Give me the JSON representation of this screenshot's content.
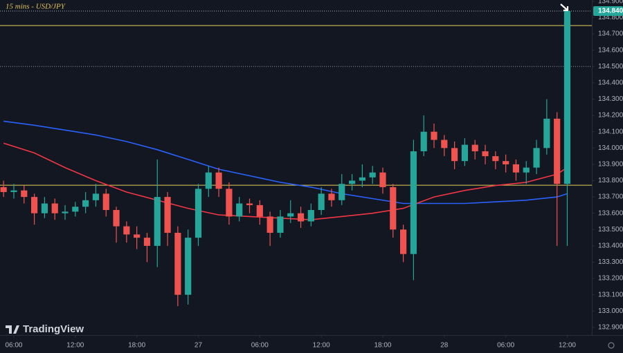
{
  "chart_data": {
    "type": "candlestick",
    "title": "15 mins - USD/JPY",
    "watermark": "TradingView",
    "x": [
      5,
      6,
      7,
      8,
      9,
      10,
      11,
      12,
      13,
      14,
      15,
      16,
      17,
      18,
      19,
      20,
      21,
      22,
      23,
      24,
      25,
      26,
      27,
      28,
      29,
      30,
      31,
      32,
      33,
      34,
      35,
      36,
      37,
      38,
      39,
      40,
      41,
      42,
      43,
      44,
      45,
      46,
      47,
      48,
      49,
      50,
      51,
      52,
      53,
      54,
      55,
      56,
      57,
      58,
      59,
      60
    ],
    "open": [
      133.76,
      133.73,
      133.74,
      133.7,
      133.6,
      133.66,
      133.6,
      133.61,
      133.64,
      133.68,
      133.72,
      133.62,
      133.52,
      133.47,
      133.45,
      133.4,
      133.7,
      133.48,
      133.1,
      133.45,
      133.75,
      133.85,
      133.75,
      133.58,
      133.66,
      133.65,
      133.58,
      133.48,
      133.58,
      133.6,
      133.55,
      133.62,
      133.72,
      133.68,
      133.78,
      133.8,
      133.82,
      133.85,
      133.76,
      133.5,
      133.35,
      133.98,
      134.1,
      134.05,
      134.0,
      133.92,
      134.02,
      133.98,
      133.95,
      133.92,
      133.9,
      133.85,
      133.88,
      134.0,
      134.18,
      133.78
    ],
    "high": [
      133.8,
      133.78,
      133.77,
      133.72,
      133.7,
      133.69,
      133.65,
      133.67,
      133.73,
      133.78,
      133.75,
      133.64,
      133.55,
      133.52,
      133.48,
      133.93,
      133.73,
      133.52,
      133.5,
      133.78,
      133.89,
      133.88,
      133.79,
      133.7,
      133.69,
      133.68,
      133.61,
      133.62,
      133.68,
      133.64,
      133.66,
      133.76,
      133.75,
      133.84,
      133.84,
      133.9,
      133.89,
      133.88,
      133.78,
      133.53,
      134.05,
      134.2,
      134.15,
      134.08,
      134.04,
      134.06,
      134.05,
      134.02,
      133.98,
      133.96,
      133.93,
      133.92,
      134.05,
      134.3,
      134.22,
      134.86
    ],
    "low": [
      133.7,
      133.69,
      133.66,
      133.53,
      133.57,
      133.56,
      133.56,
      133.58,
      133.6,
      133.64,
      133.58,
      133.42,
      133.42,
      133.38,
      133.3,
      133.27,
      133.4,
      133.03,
      133.04,
      133.4,
      133.7,
      133.7,
      133.53,
      133.55,
      133.6,
      133.53,
      133.4,
      133.45,
      133.54,
      133.51,
      133.52,
      133.59,
      133.64,
      133.65,
      133.74,
      133.76,
      133.78,
      133.72,
      133.45,
      133.3,
      133.19,
      133.95,
      134.0,
      133.95,
      133.87,
      133.89,
      133.93,
      133.9,
      133.87,
      133.85,
      133.8,
      133.78,
      133.84,
      133.96,
      133.4,
      133.4
    ],
    "close": [
      133.73,
      133.74,
      133.7,
      133.6,
      133.66,
      133.6,
      133.61,
      133.64,
      133.68,
      133.72,
      133.62,
      133.52,
      133.47,
      133.45,
      133.4,
      133.7,
      133.48,
      133.1,
      133.45,
      133.75,
      133.85,
      133.75,
      133.58,
      133.66,
      133.65,
      133.58,
      133.48,
      133.58,
      133.6,
      133.55,
      133.62,
      133.72,
      133.68,
      133.78,
      133.8,
      133.82,
      133.85,
      133.76,
      133.5,
      133.35,
      133.98,
      134.1,
      134.05,
      134.0,
      133.92,
      134.02,
      133.98,
      133.95,
      133.92,
      133.9,
      133.85,
      133.88,
      134.0,
      134.18,
      133.78,
      134.84
    ],
    "up_color": "#26a69a",
    "down_color": "#ef5350",
    "lines": [
      {
        "color": "#2962ff",
        "x": [
          5,
          8,
          11,
          14,
          17,
          20,
          23,
          26,
          29,
          32,
          35,
          38,
          41,
          44,
          47,
          50,
          53,
          56,
          59,
          60
        ],
        "values": [
          134.165,
          134.14,
          134.11,
          134.08,
          134.04,
          133.99,
          133.93,
          133.87,
          133.83,
          133.79,
          133.76,
          133.72,
          133.69,
          133.66,
          133.66,
          133.66,
          133.67,
          133.68,
          133.7,
          133.72
        ]
      },
      {
        "color": "#f23645",
        "x": [
          5,
          8,
          11,
          14,
          17,
          20,
          23,
          26,
          29,
          32,
          35,
          38,
          41,
          44,
          47,
          50,
          53,
          56,
          59,
          60
        ],
        "values": [
          134.03,
          133.97,
          133.88,
          133.8,
          133.73,
          133.68,
          133.63,
          133.59,
          133.58,
          133.57,
          133.56,
          133.58,
          133.6,
          133.63,
          133.7,
          133.74,
          133.77,
          133.79,
          133.84,
          133.88
        ]
      }
    ],
    "hlines": [
      {
        "value": 134.751,
        "color": "#e8d35a",
        "dashed": false
      },
      {
        "value": 133.772,
        "color": "#e8d35a",
        "dashed": false
      },
      {
        "value": 134.5,
        "color": "#9598a1",
        "dashed": true
      }
    ],
    "last_price": {
      "value": 134.84,
      "label": "134.840",
      "color": "#26a69a"
    },
    "xlim": [
      4.65,
      62.4
    ],
    "ylim": [
      132.853,
      134.908
    ],
    "xticks": [
      {
        "value": 6,
        "label": "06:00"
      },
      {
        "value": 12,
        "label": "12:00"
      },
      {
        "value": 18,
        "label": "18:00"
      },
      {
        "value": 24,
        "label": "27"
      },
      {
        "value": 30,
        "label": "06:00"
      },
      {
        "value": 36,
        "label": "12:00"
      },
      {
        "value": 42,
        "label": "18:00"
      },
      {
        "value": 48,
        "label": "28"
      },
      {
        "value": 54,
        "label": "06:00"
      },
      {
        "value": 60,
        "label": "12:00"
      }
    ],
    "yticks": [
      {
        "value": 132.9,
        "label": "132.900"
      },
      {
        "value": 133.0,
        "label": "133.000"
      },
      {
        "value": 133.1,
        "label": "133.100"
      },
      {
        "value": 133.2,
        "label": "133.200"
      },
      {
        "value": 133.3,
        "label": "133.300"
      },
      {
        "value": 133.4,
        "label": "133.400"
      },
      {
        "value": 133.5,
        "label": "133.500"
      },
      {
        "value": 133.6,
        "label": "133.600"
      },
      {
        "value": 133.7,
        "label": "133.700"
      },
      {
        "value": 133.8,
        "label": "133.800"
      },
      {
        "value": 133.9,
        "label": "133.900"
      },
      {
        "value": 134.0,
        "label": "134.000"
      },
      {
        "value": 134.1,
        "label": "134.100"
      },
      {
        "value": 134.2,
        "label": "134.200"
      },
      {
        "value": 134.3,
        "label": "134.300"
      },
      {
        "value": 134.4,
        "label": "134.400"
      },
      {
        "value": 134.5,
        "label": "134.500"
      },
      {
        "value": 134.6,
        "label": "134.600"
      },
      {
        "value": 134.7,
        "label": "134.700"
      },
      {
        "value": 134.8,
        "label": "134.800"
      },
      {
        "value": 134.9,
        "label": "134.900"
      }
    ],
    "grid": false
  }
}
